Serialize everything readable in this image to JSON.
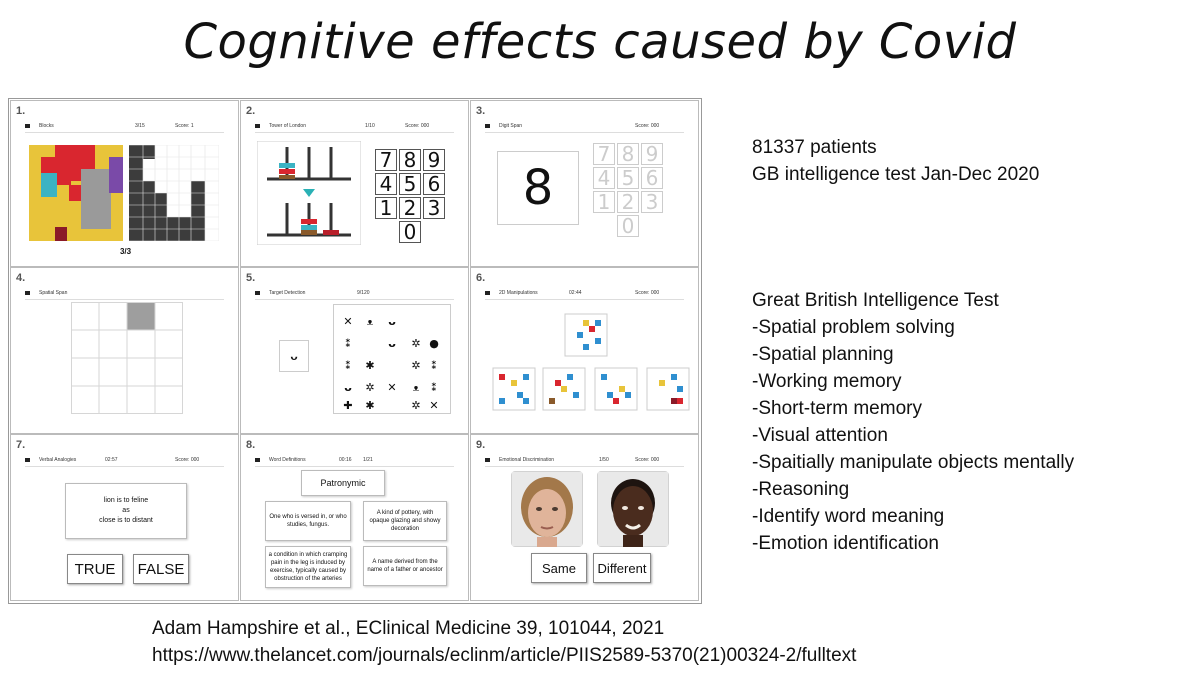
{
  "title": "Cognitive effects caused by Covid",
  "panels": {
    "p1": {
      "num": "1.",
      "name": "Blocks",
      "progress": "3/15",
      "score": "Score: 1",
      "footer": "3/3"
    },
    "p2": {
      "num": "2.",
      "name": "Tower of London",
      "progress": "1/10",
      "score": "Score: 000",
      "keypad": [
        "7",
        "8",
        "9",
        "4",
        "5",
        "6",
        "1",
        "2",
        "3",
        "0"
      ]
    },
    "p3": {
      "num": "3.",
      "name": "Digit Span",
      "score": "Score: 000",
      "digit": "8",
      "keypad": [
        "7",
        "8",
        "9",
        "4",
        "5",
        "6",
        "1",
        "2",
        "3",
        "0"
      ]
    },
    "p4": {
      "num": "4.",
      "name": "Spatial Span"
    },
    "p5": {
      "num": "5.",
      "name": "Target Detection",
      "progress": "9/120"
    },
    "p6": {
      "num": "6.",
      "name": "2D Manipulations",
      "time": "02:44",
      "score": "Score: 000"
    },
    "p7": {
      "num": "7.",
      "name": "Verbal Analogies",
      "time": "02:57",
      "score": "Score: 000",
      "analogy_line1": "lion is to feline",
      "analogy_line2": "as",
      "analogy_line3": "close is to distant",
      "true_label": "TRUE",
      "false_label": "FALSE"
    },
    "p8": {
      "num": "8.",
      "name": "Word Definitions",
      "time": "00:16",
      "progress": "1/21",
      "word": "Patronymic",
      "def1": "One who is versed in, or who studies, fungus.",
      "def2": "A kind of pottery, with opaque glazing and showy decoration",
      "def3": "a condition in which cramping pain in the leg is induced by exercise, typically caused by obstruction of the arteries",
      "def4": "A name derived from the name of a father or ancestor"
    },
    "p9": {
      "num": "9.",
      "name": "Emotional Discrimination",
      "progress": "1/50",
      "score": "Score: 000",
      "same_label": "Same",
      "different_label": "Different"
    }
  },
  "summary": {
    "patients": "81337 patients",
    "test": "GB intelligence test Jan-Dec 2020"
  },
  "list": {
    "heading": "Great British Intelligence Test",
    "items": [
      "-Spatial problem solving",
      "-Spatial planning",
      "-Working memory",
      "-Short-term memory",
      "-Visual attention",
      "-Spaitially manipulate objects mentally",
      "-Reasoning",
      "-Identify word meaning",
      "-Emotion identification"
    ]
  },
  "citation": {
    "authors": "Adam Hampshire et al., EClinical Medicine 39, 101044, 2021",
    "url": "https://www.thelancet.com/journals/eclinm/article/PIIS2589-5370(21)00324-2/fulltext"
  }
}
